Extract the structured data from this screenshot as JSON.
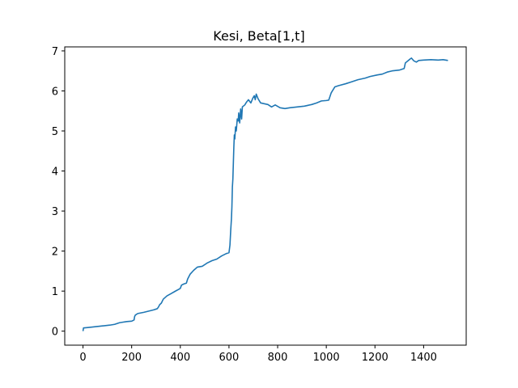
{
  "chart_data": {
    "type": "line",
    "title": "Kesi, Beta[1,t]",
    "xlabel": "",
    "ylabel": "",
    "xlim": [
      -75,
      1575
    ],
    "ylim": [
      -0.35,
      7.1
    ],
    "xticks": [
      0,
      200,
      400,
      600,
      800,
      1000,
      1200,
      1400
    ],
    "yticks": [
      0,
      1,
      2,
      3,
      4,
      5,
      6,
      7
    ],
    "grid": false,
    "legend": "none",
    "line_color": "#1f77b4",
    "series": [
      {
        "points": [
          [
            0,
            0.0
          ],
          [
            2,
            0.08
          ],
          [
            20,
            0.09
          ],
          [
            50,
            0.11
          ],
          [
            80,
            0.13
          ],
          [
            110,
            0.15
          ],
          [
            130,
            0.17
          ],
          [
            150,
            0.21
          ],
          [
            160,
            0.22
          ],
          [
            180,
            0.24
          ],
          [
            200,
            0.25
          ],
          [
            210,
            0.28
          ],
          [
            212,
            0.36
          ],
          [
            215,
            0.4
          ],
          [
            225,
            0.44
          ],
          [
            250,
            0.47
          ],
          [
            270,
            0.5
          ],
          [
            290,
            0.53
          ],
          [
            305,
            0.56
          ],
          [
            310,
            0.6
          ],
          [
            315,
            0.66
          ],
          [
            322,
            0.7
          ],
          [
            330,
            0.8
          ],
          [
            345,
            0.88
          ],
          [
            360,
            0.93
          ],
          [
            380,
            1.0
          ],
          [
            395,
            1.05
          ],
          [
            400,
            1.07
          ],
          [
            405,
            1.15
          ],
          [
            415,
            1.18
          ],
          [
            425,
            1.2
          ],
          [
            430,
            1.3
          ],
          [
            440,
            1.42
          ],
          [
            455,
            1.52
          ],
          [
            470,
            1.6
          ],
          [
            490,
            1.62
          ],
          [
            510,
            1.7
          ],
          [
            530,
            1.76
          ],
          [
            550,
            1.8
          ],
          [
            570,
            1.88
          ],
          [
            590,
            1.94
          ],
          [
            600,
            1.96
          ],
          [
            604,
            2.15
          ],
          [
            607,
            2.5
          ],
          [
            610,
            2.8
          ],
          [
            612,
            3.1
          ],
          [
            614,
            3.6
          ],
          [
            616,
            3.8
          ],
          [
            618,
            4.2
          ],
          [
            620,
            4.6
          ],
          [
            622,
            4.9
          ],
          [
            624,
            4.8
          ],
          [
            627,
            5.1
          ],
          [
            630,
            5.0
          ],
          [
            634,
            5.3
          ],
          [
            638,
            5.25
          ],
          [
            640,
            5.45
          ],
          [
            644,
            5.2
          ],
          [
            648,
            5.55
          ],
          [
            652,
            5.3
          ],
          [
            655,
            5.6
          ],
          [
            665,
            5.65
          ],
          [
            672,
            5.72
          ],
          [
            680,
            5.78
          ],
          [
            690,
            5.7
          ],
          [
            698,
            5.82
          ],
          [
            704,
            5.88
          ],
          [
            708,
            5.78
          ],
          [
            712,
            5.92
          ],
          [
            720,
            5.8
          ],
          [
            730,
            5.7
          ],
          [
            760,
            5.66
          ],
          [
            775,
            5.6
          ],
          [
            790,
            5.65
          ],
          [
            810,
            5.58
          ],
          [
            830,
            5.56
          ],
          [
            850,
            5.58
          ],
          [
            880,
            5.6
          ],
          [
            910,
            5.62
          ],
          [
            940,
            5.66
          ],
          [
            960,
            5.7
          ],
          [
            980,
            5.75
          ],
          [
            1000,
            5.76
          ],
          [
            1010,
            5.77
          ],
          [
            1020,
            5.95
          ],
          [
            1035,
            6.1
          ],
          [
            1050,
            6.13
          ],
          [
            1080,
            6.18
          ],
          [
            1100,
            6.22
          ],
          [
            1130,
            6.28
          ],
          [
            1160,
            6.32
          ],
          [
            1180,
            6.36
          ],
          [
            1210,
            6.4
          ],
          [
            1230,
            6.42
          ],
          [
            1250,
            6.47
          ],
          [
            1270,
            6.5
          ],
          [
            1300,
            6.52
          ],
          [
            1320,
            6.56
          ],
          [
            1325,
            6.7
          ],
          [
            1335,
            6.75
          ],
          [
            1345,
            6.8
          ],
          [
            1350,
            6.82
          ],
          [
            1360,
            6.75
          ],
          [
            1370,
            6.72
          ],
          [
            1380,
            6.76
          ],
          [
            1400,
            6.77
          ],
          [
            1430,
            6.78
          ],
          [
            1460,
            6.77
          ],
          [
            1480,
            6.78
          ],
          [
            1500,
            6.76
          ]
        ]
      }
    ]
  }
}
